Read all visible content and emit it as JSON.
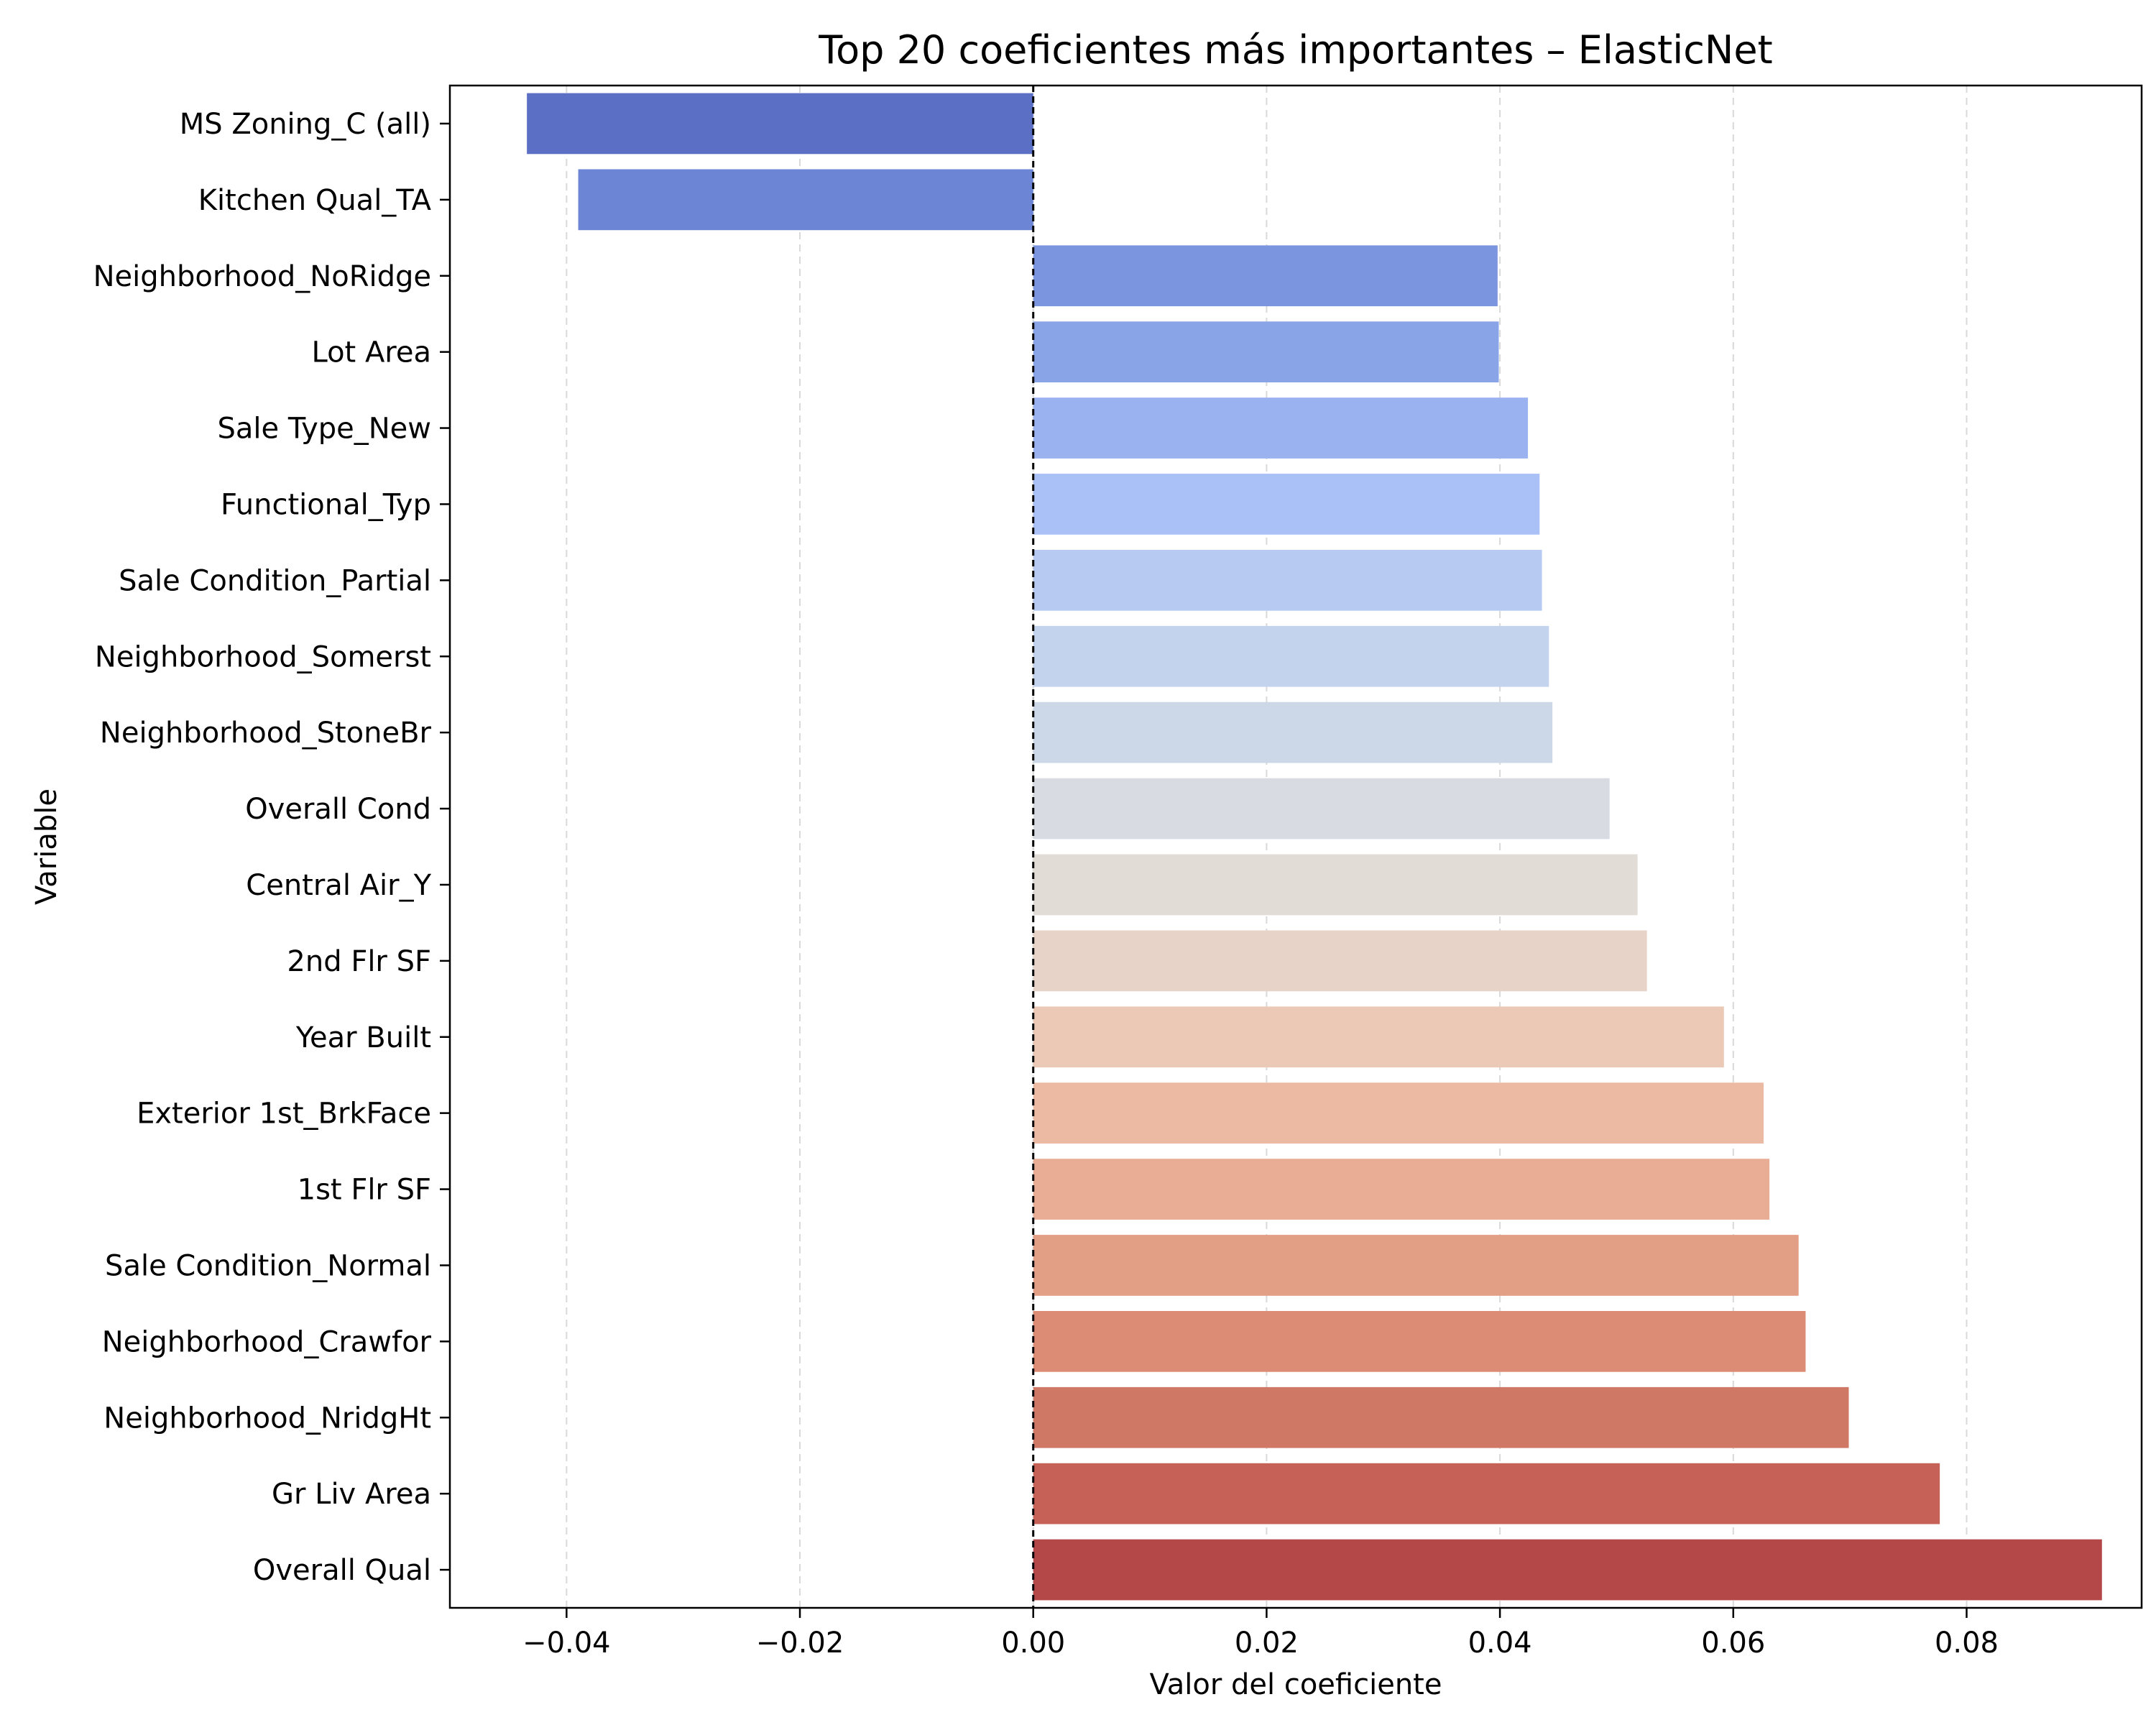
{
  "chart_data": {
    "type": "bar",
    "orientation": "horizontal",
    "title": "Top 20 coeficientes más importantes – ElasticNet",
    "xlabel": "Valor del coeficiente",
    "ylabel": "Variable",
    "xlim": [
      -0.05,
      0.095
    ],
    "xticks": [
      -0.04,
      -0.02,
      0.0,
      0.02,
      0.04,
      0.06,
      0.08
    ],
    "xtick_labels": [
      "−0.04",
      "−0.02",
      "0.00",
      "0.02",
      "0.04",
      "0.06",
      "0.08"
    ],
    "grid": "x-dashed",
    "reference_line": 0.0,
    "categories": [
      "MS Zoning_C (all)",
      "Kitchen Qual_TA",
      "Neighborhood_NoRidge",
      "Lot Area",
      "Sale Type_New",
      "Functional_Typ",
      "Sale Condition_Partial",
      "Neighborhood_Somerst",
      "Neighborhood_StoneBr",
      "Overall Cond",
      "Central Air_Y",
      "2nd Flr SF",
      "Year Built",
      "Exterior 1st_BrkFace",
      "1st Flr SF",
      "Sale Condition_Normal",
      "Neighborhood_Crawfor",
      "Neighborhood_NridgHt",
      "Gr Liv Area",
      "Overall Qual"
    ],
    "values": [
      -0.0434,
      -0.039,
      0.0398,
      0.0399,
      0.0424,
      0.0434,
      0.0436,
      0.0442,
      0.0445,
      0.0494,
      0.0518,
      0.0526,
      0.0592,
      0.0626,
      0.0631,
      0.0656,
      0.0662,
      0.0699,
      0.0777,
      0.0916
    ],
    "colors": [
      "#5b70c4",
      "#6c85d4",
      "#7b95de",
      "#8aa4e8",
      "#9ab3f0",
      "#a9c1f6",
      "#b6caf2",
      "#c3d3ee",
      "#ccd8e8",
      "#d8dce2",
      "#e2dcd6",
      "#e8d3c8",
      "#ebc9b6",
      "#ecbaa2",
      "#e9ad96",
      "#e39e86",
      "#dc8b75",
      "#d07866",
      "#c56157",
      "#b44848"
    ]
  }
}
